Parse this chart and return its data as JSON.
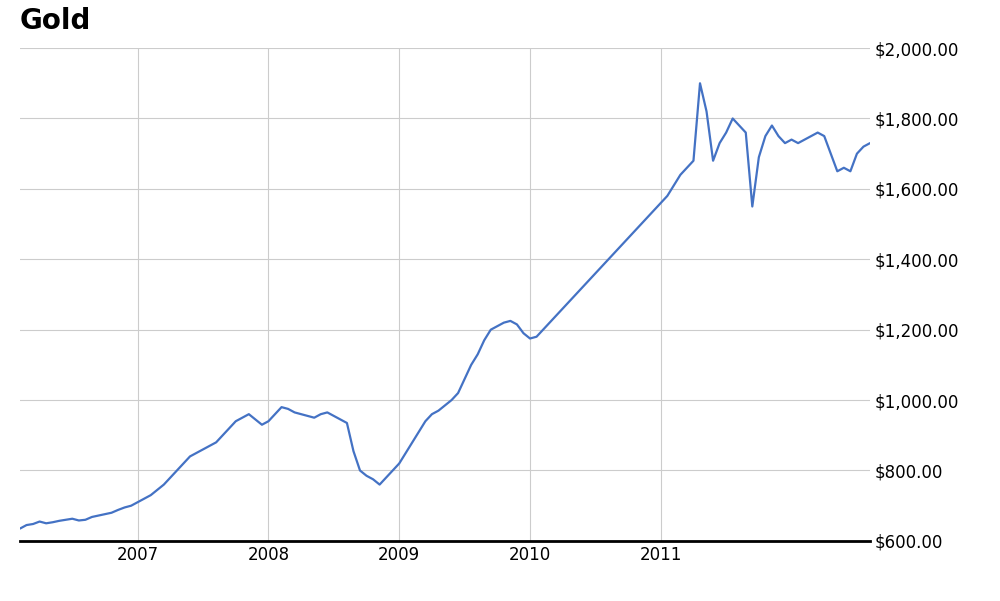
{
  "title": "Gold",
  "line_color": "#4472C4",
  "background_color": "#ffffff",
  "grid_color": "#cccccc",
  "title_fontsize": 20,
  "tick_fontsize": 12,
  "ylim": [
    600,
    2000
  ],
  "yticks": [
    600,
    800,
    1000,
    1200,
    1400,
    1600,
    1800,
    2000
  ],
  "xlim": [
    0,
    6.5
  ],
  "x_labels": [
    "2007",
    "2008",
    "2009",
    "2010",
    "2011"
  ],
  "x_positions": [
    0.9,
    1.9,
    2.9,
    3.9,
    4.9
  ],
  "data": [
    [
      0.0,
      635
    ],
    [
      0.05,
      645
    ],
    [
      0.1,
      648
    ],
    [
      0.15,
      655
    ],
    [
      0.2,
      650
    ],
    [
      0.25,
      653
    ],
    [
      0.3,
      657
    ],
    [
      0.35,
      660
    ],
    [
      0.4,
      663
    ],
    [
      0.45,
      658
    ],
    [
      0.5,
      660
    ],
    [
      0.55,
      668
    ],
    [
      0.6,
      672
    ],
    [
      0.65,
      676
    ],
    [
      0.7,
      680
    ],
    [
      0.75,
      688
    ],
    [
      0.8,
      695
    ],
    [
      0.85,
      700
    ],
    [
      0.9,
      710
    ],
    [
      0.95,
      720
    ],
    [
      1.0,
      730
    ],
    [
      1.05,
      745
    ],
    [
      1.1,
      760
    ],
    [
      1.15,
      780
    ],
    [
      1.2,
      800
    ],
    [
      1.25,
      820
    ],
    [
      1.3,
      840
    ],
    [
      1.35,
      850
    ],
    [
      1.4,
      860
    ],
    [
      1.45,
      870
    ],
    [
      1.5,
      880
    ],
    [
      1.55,
      900
    ],
    [
      1.6,
      920
    ],
    [
      1.65,
      940
    ],
    [
      1.7,
      950
    ],
    [
      1.75,
      960
    ],
    [
      1.8,
      945
    ],
    [
      1.85,
      930
    ],
    [
      1.9,
      940
    ],
    [
      1.95,
      960
    ],
    [
      2.0,
      980
    ],
    [
      2.05,
      975
    ],
    [
      2.1,
      965
    ],
    [
      2.15,
      960
    ],
    [
      2.2,
      955
    ],
    [
      2.25,
      950
    ],
    [
      2.3,
      960
    ],
    [
      2.35,
      965
    ],
    [
      2.4,
      955
    ],
    [
      2.45,
      945
    ],
    [
      2.5,
      935
    ],
    [
      2.55,
      855
    ],
    [
      2.6,
      800
    ],
    [
      2.65,
      785
    ],
    [
      2.7,
      775
    ],
    [
      2.75,
      760
    ],
    [
      2.8,
      780
    ],
    [
      2.85,
      800
    ],
    [
      2.9,
      820
    ],
    [
      2.95,
      850
    ],
    [
      3.0,
      880
    ],
    [
      3.05,
      910
    ],
    [
      3.1,
      940
    ],
    [
      3.15,
      960
    ],
    [
      3.2,
      970
    ],
    [
      3.25,
      985
    ],
    [
      3.3,
      1000
    ],
    [
      3.35,
      1020
    ],
    [
      3.4,
      1060
    ],
    [
      3.45,
      1100
    ],
    [
      3.5,
      1130
    ],
    [
      3.55,
      1170
    ],
    [
      3.6,
      1200
    ],
    [
      3.65,
      1210
    ],
    [
      3.7,
      1220
    ],
    [
      3.75,
      1225
    ],
    [
      3.8,
      1215
    ],
    [
      3.85,
      1190
    ],
    [
      3.9,
      1175
    ],
    [
      3.95,
      1180
    ],
    [
      4.0,
      1200
    ],
    [
      4.05,
      1220
    ],
    [
      4.1,
      1240
    ],
    [
      4.15,
      1260
    ],
    [
      4.2,
      1280
    ],
    [
      4.25,
      1300
    ],
    [
      4.3,
      1320
    ],
    [
      4.35,
      1340
    ],
    [
      4.4,
      1360
    ],
    [
      4.45,
      1380
    ],
    [
      4.5,
      1400
    ],
    [
      4.55,
      1420
    ],
    [
      4.6,
      1440
    ],
    [
      4.65,
      1460
    ],
    [
      4.7,
      1480
    ],
    [
      4.75,
      1500
    ],
    [
      4.8,
      1520
    ],
    [
      4.85,
      1540
    ],
    [
      4.9,
      1560
    ],
    [
      4.95,
      1580
    ],
    [
      5.0,
      1610
    ],
    [
      5.05,
      1640
    ],
    [
      5.1,
      1660
    ],
    [
      5.15,
      1680
    ],
    [
      5.2,
      1900
    ],
    [
      5.25,
      1820
    ],
    [
      5.3,
      1680
    ],
    [
      5.35,
      1730
    ],
    [
      5.4,
      1760
    ],
    [
      5.45,
      1800
    ],
    [
      5.5,
      1780
    ],
    [
      5.55,
      1760
    ],
    [
      5.6,
      1550
    ],
    [
      5.65,
      1690
    ],
    [
      5.7,
      1750
    ],
    [
      5.75,
      1780
    ],
    [
      5.8,
      1750
    ],
    [
      5.85,
      1730
    ],
    [
      5.9,
      1740
    ],
    [
      5.95,
      1730
    ],
    [
      6.0,
      1740
    ],
    [
      6.05,
      1750
    ],
    [
      6.1,
      1760
    ],
    [
      6.15,
      1750
    ],
    [
      6.2,
      1700
    ],
    [
      6.25,
      1650
    ],
    [
      6.3,
      1660
    ],
    [
      6.35,
      1650
    ],
    [
      6.4,
      1700
    ],
    [
      6.45,
      1720
    ],
    [
      6.5,
      1730
    ]
  ]
}
